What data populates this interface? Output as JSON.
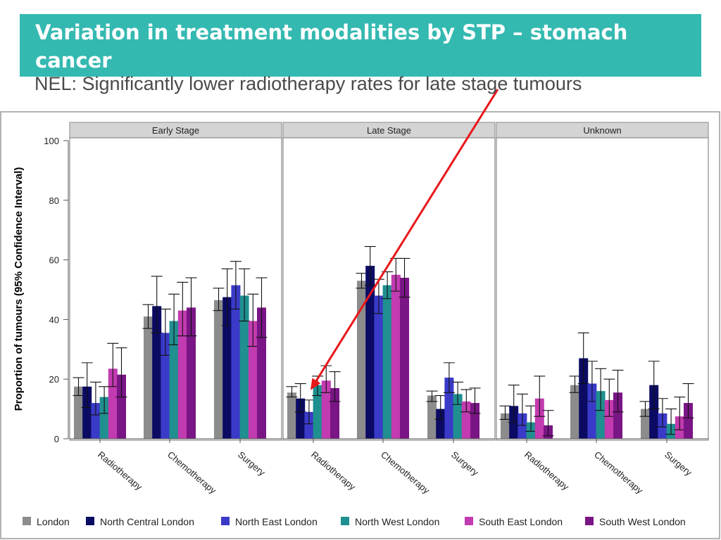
{
  "slide": {
    "title": "Variation in treatment modalities by STP – stomach cancer",
    "subtitle": "NEL: Significantly lower radiotherapy rates for late stage tumours"
  },
  "colors": {
    "title_bg": "#34b9b1",
    "arrow": "#e8171b",
    "panel_header_bg": "#d4d4d4"
  },
  "chart_data": {
    "type": "bar",
    "ylabel": "Proportion of tumours (95% Confidence Interval)",
    "ylim": [
      0,
      100
    ],
    "yticks": [
      0,
      20,
      40,
      60,
      80,
      100
    ],
    "panels": [
      "Early Stage",
      "Late Stage",
      "Unknown"
    ],
    "categories": [
      "Radiotherapy",
      "Chemotherapy",
      "Surgery"
    ],
    "series": [
      {
        "name": "London",
        "color": "#8c8c8c"
      },
      {
        "name": "North Central London",
        "color": "#0b0b63"
      },
      {
        "name": "North East London",
        "color": "#3a3ac9"
      },
      {
        "name": "North West London",
        "color": "#1f8f8f"
      },
      {
        "name": "South East London",
        "color": "#c23bb0"
      },
      {
        "name": "South West London",
        "color": "#7a1585"
      }
    ],
    "values": {
      "Early Stage": {
        "Radiotherapy": [
          17.5,
          17.5,
          12,
          14,
          23.5,
          21.5
        ],
        "Chemotherapy": [
          41,
          44.5,
          35.5,
          39.5,
          43,
          44
        ],
        "Surgery": [
          46.5,
          47.5,
          51.5,
          48,
          39.5,
          44
        ]
      },
      "Late Stage": {
        "Radiotherapy": [
          15.5,
          13.5,
          9,
          18,
          19.5,
          17
        ],
        "Chemotherapy": [
          53,
          58,
          48,
          51.5,
          55,
          54
        ],
        "Surgery": [
          14.5,
          10,
          20.5,
          15,
          12.5,
          12
        ]
      },
      "Unknown": {
        "Radiotherapy": [
          8.5,
          11,
          8.5,
          5.5,
          13.5,
          4.5
        ],
        "Chemotherapy": [
          18,
          27,
          18.5,
          16,
          13,
          15.5
        ],
        "Surgery": [
          10,
          18,
          8.5,
          5,
          7.5,
          12
        ]
      }
    },
    "ci": {
      "Early Stage": {
        "Radiotherapy": [
          [
            14.5,
            20.5
          ],
          [
            10.5,
            25.5
          ],
          [
            8,
            19
          ],
          [
            8.5,
            17.5
          ],
          [
            17.5,
            32
          ],
          [
            14,
            30.5
          ]
        ],
        "Chemotherapy": [
          [
            37,
            45
          ],
          [
            35.5,
            54.5
          ],
          [
            28,
            43.5
          ],
          [
            31.5,
            48.5
          ],
          [
            34.5,
            52.5
          ],
          [
            34.5,
            54
          ]
        ],
        "Surgery": [
          [
            43,
            50.5
          ],
          [
            38,
            57
          ],
          [
            43.5,
            59.5
          ],
          [
            39.5,
            57
          ],
          [
            31,
            48.5
          ],
          [
            34,
            54
          ]
        ]
      },
      "Late Stage": {
        "Radiotherapy": [
          [
            14,
            17.5
          ],
          [
            9,
            18.5
          ],
          [
            5,
            13
          ],
          [
            14.5,
            21
          ],
          [
            15.5,
            24.5
          ],
          [
            12.5,
            22.5
          ]
        ],
        "Chemotherapy": [
          [
            50.5,
            55.5
          ],
          [
            51.5,
            64.5
          ],
          [
            42,
            53.5
          ],
          [
            47,
            56
          ],
          [
            49.5,
            60.5
          ],
          [
            47.5,
            60.5
          ]
        ],
        "Surgery": [
          [
            12.5,
            16
          ],
          [
            6.5,
            14.5
          ],
          [
            15.5,
            25.5
          ],
          [
            11.5,
            19
          ],
          [
            9,
            16.5
          ],
          [
            8.5,
            17
          ]
        ]
      },
      "Unknown": {
        "Radiotherapy": [
          [
            6.5,
            11
          ],
          [
            5.5,
            18
          ],
          [
            4.5,
            15
          ],
          [
            2.5,
            11
          ],
          [
            7.5,
            21
          ],
          [
            1,
            9.5
          ]
        ],
        "Chemotherapy": [
          [
            15.5,
            21
          ],
          [
            18.5,
            35.5
          ],
          [
            12.5,
            26
          ],
          [
            9.5,
            23.5
          ],
          [
            7.5,
            20
          ],
          [
            9,
            23
          ]
        ],
        "Surgery": [
          [
            7.5,
            12.5
          ],
          [
            10,
            26
          ],
          [
            4,
            13.5
          ],
          [
            1.5,
            10
          ],
          [
            3,
            14
          ],
          [
            7,
            18.5
          ]
        ]
      }
    },
    "annotation": {
      "type": "arrow",
      "from": "subtitle",
      "to": {
        "panel": "Late Stage",
        "category": "Radiotherapy",
        "series": "North East London"
      }
    }
  }
}
